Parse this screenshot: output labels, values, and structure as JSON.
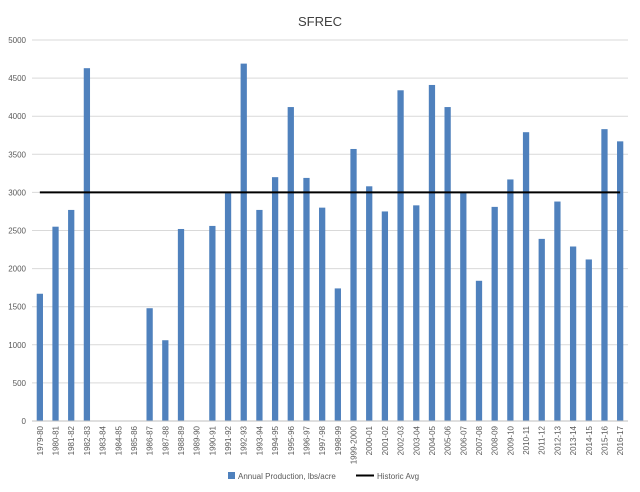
{
  "chart_data": {
    "type": "bar",
    "title": "SFREC",
    "xlabel": "",
    "ylabel": "",
    "ylim": [
      0,
      5000
    ],
    "y_ticks": [
      0,
      500,
      1000,
      1500,
      2000,
      2500,
      3000,
      3500,
      4000,
      4500,
      5000
    ],
    "grid": "horizontal",
    "legend_position": "bottom",
    "categories": [
      "1979-80",
      "1980-81",
      "1981-82",
      "1982-83",
      "1983-84",
      "1984-85",
      "1985-86",
      "1986-87",
      "1987-88",
      "1988-89",
      "1989-90",
      "1990-91",
      "1991-92",
      "1992-93",
      "1993-94",
      "1994-95",
      "1995-96",
      "1996-97",
      "1997-98",
      "1998-99",
      "1999-2000",
      "2000-01",
      "2001-02",
      "2002-03",
      "2003-04",
      "2004-05",
      "2005-06",
      "2006-07",
      "2007-08",
      "2008-09",
      "2009-10",
      "2010-11",
      "2011-12",
      "2012-13",
      "2013-14",
      "2014-15",
      "2015-16",
      "2016-17"
    ],
    "series": [
      {
        "name": "Annual Production, lbs/acre",
        "type": "bar",
        "color": "#4f81bd",
        "values": [
          1670,
          2550,
          2770,
          4630,
          0,
          0,
          0,
          1480,
          1060,
          2520,
          0,
          2560,
          2990,
          4690,
          2770,
          3200,
          4120,
          3190,
          2800,
          1740,
          3570,
          3080,
          2750,
          4340,
          2830,
          4410,
          4120,
          2990,
          1840,
          2810,
          3170,
          3790,
          2390,
          2880,
          2290,
          2120,
          3830,
          3670
        ]
      },
      {
        "name": "Historic Avg",
        "type": "line",
        "color": "#000000",
        "value": 3000
      }
    ]
  }
}
